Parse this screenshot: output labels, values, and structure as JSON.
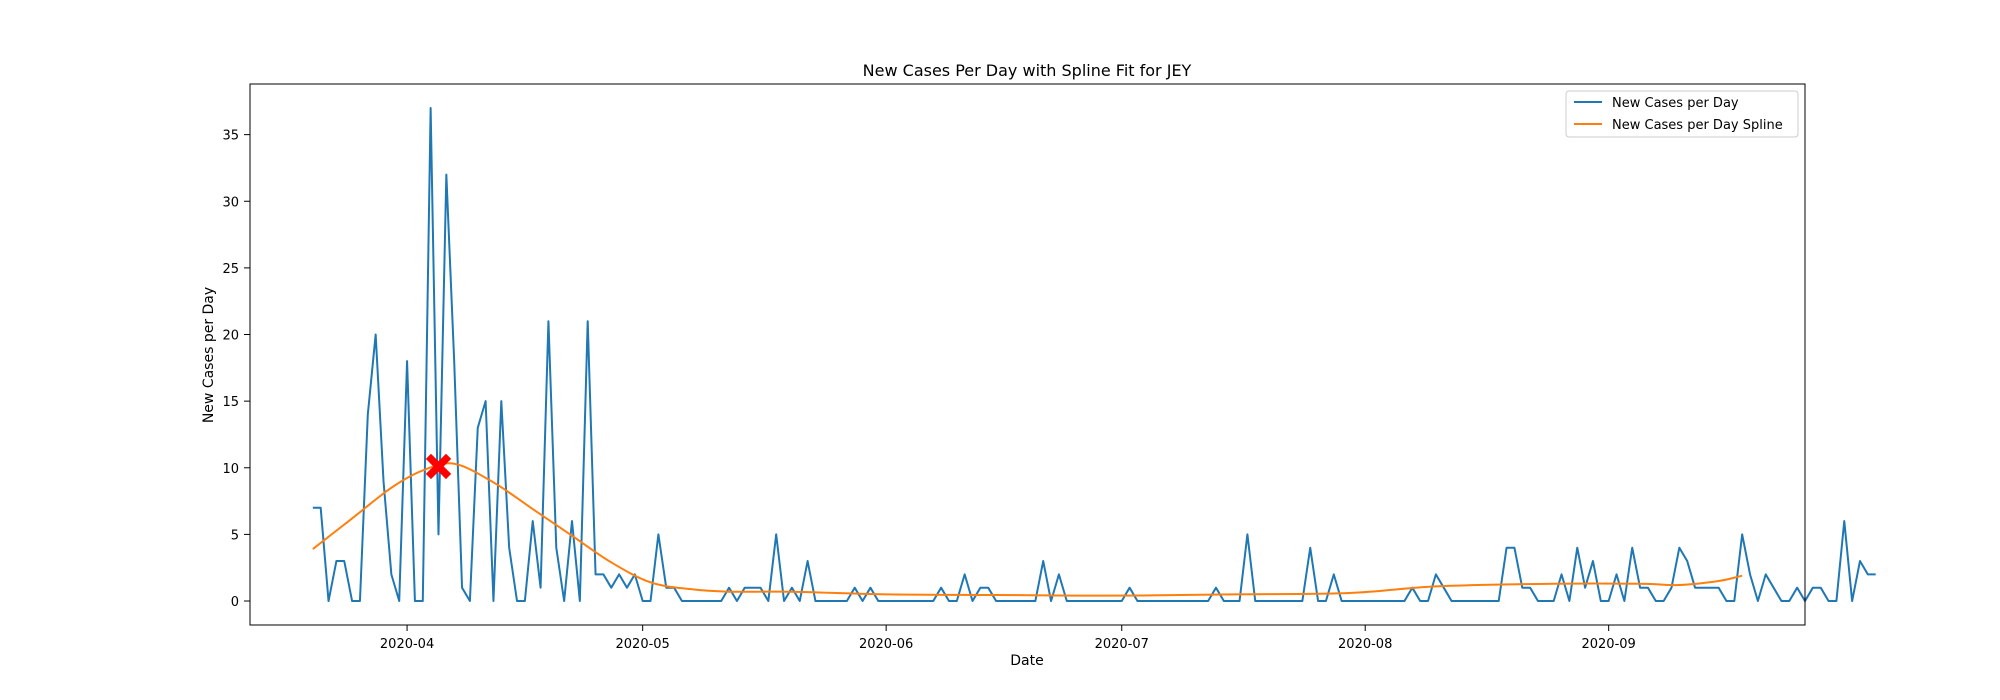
{
  "chart_data": {
    "type": "line",
    "title": "New Cases Per Day with Spline Fit for JEY",
    "xlabel": "Date",
    "ylabel": "New Cases per Day",
    "xlim": [
      "2020-03-12",
      "2020-09-26"
    ],
    "ylim": [
      -1.8,
      38.8
    ],
    "x_ticks": [
      "2020-04-01",
      "2020-05-01",
      "2020-06-01",
      "2020-07-01",
      "2020-08-01",
      "2020-09-01"
    ],
    "x_tick_labels": [
      "2020-04",
      "2020-05",
      "2020-06",
      "2020-07",
      "2020-08",
      "2020-09"
    ],
    "y_ticks": [
      0,
      5,
      10,
      15,
      20,
      25,
      30,
      35
    ],
    "y_tick_labels": [
      "0",
      "5",
      "10",
      "15",
      "20",
      "25",
      "30",
      "35"
    ],
    "grid": false,
    "legend_position": "top-right",
    "start_date": "2020-03-20",
    "series": [
      {
        "name": "New Cases per Day",
        "color": "#1f77b4",
        "values": [
          7,
          7,
          0,
          3,
          3,
          0,
          0,
          14,
          20,
          9,
          2,
          0,
          18,
          0,
          0,
          37,
          5,
          32,
          18,
          1,
          0,
          13,
          15,
          0,
          15,
          4,
          0,
          0,
          6,
          1,
          21,
          4,
          0,
          6,
          0,
          21,
          2,
          2,
          1,
          2,
          1,
          2,
          0,
          0,
          5,
          1,
          1,
          0,
          0,
          0,
          0,
          0,
          0,
          1,
          0,
          1,
          1,
          1,
          0,
          5,
          0,
          1,
          0,
          3,
          0,
          0,
          0,
          0,
          0,
          1,
          0,
          1,
          0,
          0,
          0,
          0,
          0,
          0,
          0,
          0,
          1,
          0,
          0,
          2,
          0,
          1,
          1,
          0,
          0,
          0,
          0,
          0,
          0,
          3,
          0,
          2,
          0,
          0,
          0,
          0,
          0,
          0,
          0,
          0,
          1,
          0,
          0,
          0,
          0,
          0,
          0,
          0,
          0,
          0,
          0,
          1,
          0,
          0,
          0,
          5,
          0,
          0,
          0,
          0,
          0,
          0,
          0,
          4,
          0,
          0,
          2,
          0,
          0,
          0,
          0,
          0,
          0,
          0,
          0,
          0,
          1,
          0,
          0,
          2,
          1,
          0,
          0,
          0,
          0,
          0,
          0,
          0,
          4,
          4,
          1,
          1,
          0,
          0,
          0,
          2,
          0,
          4,
          1,
          3,
          0,
          0,
          2,
          0,
          4,
          1,
          1,
          0,
          0,
          1,
          4,
          3,
          1,
          1,
          1,
          1,
          0,
          0,
          5,
          2,
          0,
          2,
          1,
          0,
          0,
          1,
          0,
          1,
          1,
          0,
          0,
          6,
          0,
          3,
          2,
          2
        ]
      },
      {
        "name": "New Cases per Day Spline",
        "color": "#ff7f0e",
        "x": [
          "2020-03-20",
          "2020-03-25",
          "2020-03-30",
          "2020-04-03",
          "2020-04-07",
          "2020-04-12",
          "2020-04-17",
          "2020-04-22",
          "2020-04-27",
          "2020-05-02",
          "2020-05-07",
          "2020-05-12",
          "2020-05-20",
          "2020-06-01",
          "2020-06-15",
          "2020-06-30",
          "2020-07-15",
          "2020-07-30",
          "2020-08-10",
          "2020-08-25",
          "2020-09-05",
          "2020-09-10",
          "2020-09-15",
          "2020-09-18"
        ],
        "values": [
          3.9,
          6.2,
          8.5,
          9.8,
          10.3,
          8.9,
          6.9,
          4.9,
          2.9,
          1.4,
          0.9,
          0.7,
          0.7,
          0.5,
          0.45,
          0.4,
          0.5,
          0.6,
          1.1,
          1.3,
          1.3,
          1.2,
          1.5,
          1.9
        ]
      }
    ],
    "annotations": [
      {
        "type": "marker",
        "shape": "x",
        "color": "#ff0000",
        "x": "2020-04-05",
        "y": 10.1
      }
    ]
  }
}
